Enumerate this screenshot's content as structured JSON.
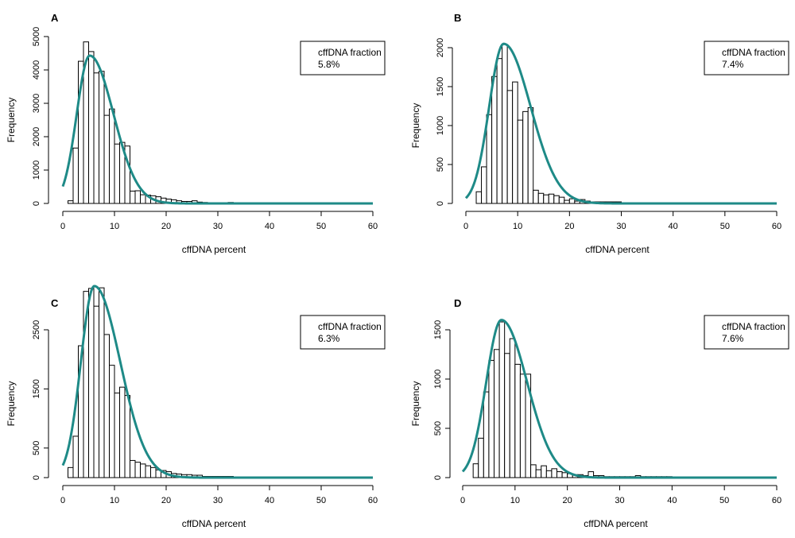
{
  "chart_data": [
    {
      "type": "bar",
      "panel_label": "A",
      "xlabel": "cffDNA percent",
      "ylabel": "Frequency",
      "xlim": [
        0,
        60
      ],
      "ylim": [
        0,
        5000
      ],
      "xticks": [
        0,
        10,
        20,
        30,
        40,
        50,
        60
      ],
      "yticks": [
        0,
        1000,
        2000,
        3000,
        4000,
        5000
      ],
      "bin_width": 1,
      "bin_start": 1,
      "values": [
        80,
        1660,
        4260,
        4840,
        4550,
        3910,
        3960,
        2640,
        2830,
        1780,
        1830,
        1720,
        370,
        380,
        260,
        250,
        230,
        200,
        160,
        130,
        110,
        80,
        60,
        60,
        80,
        40,
        30,
        20,
        20,
        20,
        20,
        30,
        10,
        10,
        10,
        10,
        10,
        5,
        5
      ],
      "fit_curve": {
        "peak_x": 5.2,
        "peak_y": 4430,
        "left_width": 2.5,
        "right_width": 4.6
      },
      "legend": {
        "title": "cffDNA fraction",
        "value": "5.8%",
        "position": "top-right"
      },
      "curve_color": "#1e8a87"
    },
    {
      "type": "bar",
      "panel_label": "B",
      "xlabel": "cffDNA percent",
      "ylabel": "Frequency",
      "xlim": [
        0,
        60
      ],
      "ylim": [
        0,
        2000
      ],
      "xticks": [
        0,
        10,
        20,
        30,
        40,
        50,
        60
      ],
      "yticks": [
        0,
        500,
        1000,
        1500,
        2000
      ],
      "bin_width": 1,
      "bin_start": 2,
      "values": [
        150,
        470,
        1140,
        1630,
        1860,
        2040,
        1450,
        1560,
        1070,
        1180,
        1230,
        170,
        130,
        110,
        120,
        100,
        80,
        40,
        60,
        30,
        50,
        30,
        20,
        20,
        20,
        20,
        20,
        20,
        10,
        10,
        10,
        10,
        5,
        5
      ],
      "fit_curve": {
        "peak_x": 7.3,
        "peak_y": 2050,
        "left_width": 2.8,
        "right_width": 5.2
      },
      "legend": {
        "title": "cffDNA fraction",
        "value": "7.4%",
        "position": "top-right"
      },
      "curve_color": "#1e8a87"
    },
    {
      "type": "bar",
      "panel_label": "C",
      "xlabel": "cffDNA percent",
      "ylabel": "Frequency",
      "xlim": [
        0,
        60
      ],
      "ylim": [
        0,
        3000
      ],
      "xticks": [
        0,
        10,
        20,
        30,
        40,
        50,
        60
      ],
      "yticks": [
        0,
        500,
        1500,
        2500
      ],
      "bin_width": 1,
      "bin_start": 1,
      "values": [
        170,
        700,
        2230,
        3150,
        3200,
        2900,
        3210,
        2420,
        1900,
        1430,
        1530,
        1390,
        290,
        260,
        230,
        200,
        170,
        130,
        120,
        100,
        70,
        60,
        50,
        50,
        40,
        40,
        20,
        20,
        20,
        20,
        20,
        20,
        10,
        10,
        10,
        10,
        10,
        10
      ],
      "fit_curve": {
        "peak_x": 6.1,
        "peak_y": 3240,
        "left_width": 2.6,
        "right_width": 5.0
      },
      "legend": {
        "title": "cffDNA fraction",
        "value": "6.3%",
        "position": "top-right"
      },
      "curve_color": "#1e8a87"
    },
    {
      "type": "bar",
      "panel_label": "D",
      "xlabel": "cffDNA percent",
      "ylabel": "Frequency",
      "xlim": [
        0,
        60
      ],
      "ylim": [
        0,
        1500
      ],
      "xticks": [
        0,
        10,
        20,
        30,
        40,
        50,
        60
      ],
      "yticks": [
        0,
        500,
        1000,
        1500
      ],
      "bin_width": 1,
      "bin_start": 2,
      "values": [
        140,
        400,
        870,
        1190,
        1300,
        1580,
        1260,
        1410,
        1150,
        1050,
        1050,
        130,
        80,
        120,
        70,
        90,
        60,
        50,
        40,
        30,
        30,
        20,
        60,
        20,
        20,
        10,
        10,
        10,
        10,
        10,
        10,
        20,
        10,
        10,
        10,
        10,
        10,
        10
      ],
      "fit_curve": {
        "peak_x": 7.4,
        "peak_y": 1600,
        "left_width": 2.9,
        "right_width": 4.9
      },
      "legend": {
        "title": "cffDNA fraction",
        "value": "7.6%",
        "position": "top-right"
      },
      "curve_color": "#1e8a87"
    }
  ]
}
